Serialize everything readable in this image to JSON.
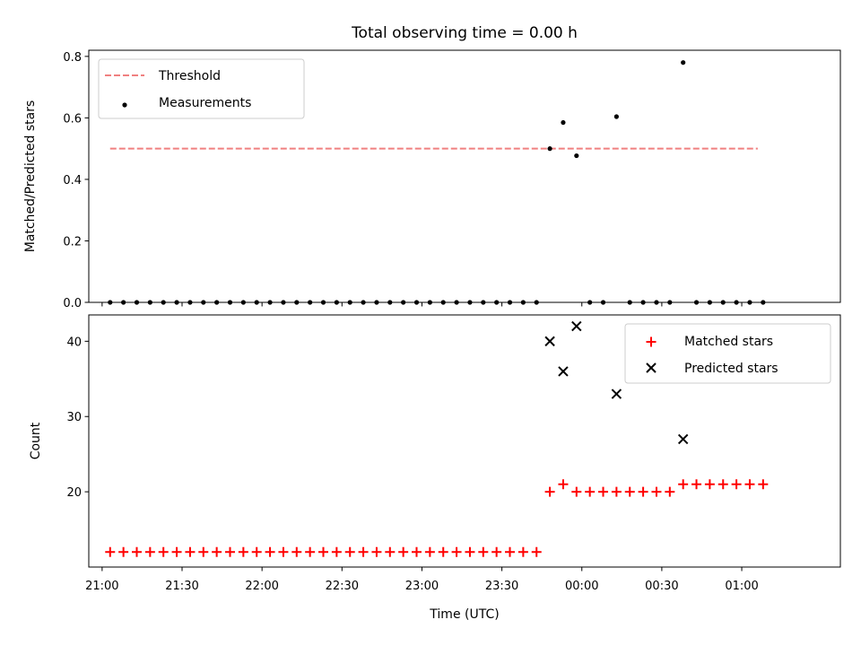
{
  "title": "Total observing time = 0.00 h",
  "colors": {
    "threshold": "#f08080",
    "measurement": "#000000",
    "matched": "#ff0000",
    "predicted": "#000000"
  },
  "chart_data": [
    {
      "type": "scatter",
      "title": "Total observing time = 0.00 h",
      "ylabel": "Matched/Predicted stars",
      "xlabel": "",
      "xlim": [
        "20:55",
        "01:37"
      ],
      "ylim": [
        0,
        0.82
      ],
      "xticks": [
        "21:00",
        "21:30",
        "22:00",
        "22:30",
        "23:00",
        "23:30",
        "00:00",
        "00:30",
        "01:00"
      ],
      "yticks": [
        "0.0",
        "0.2",
        "0.4",
        "0.6",
        "0.8"
      ],
      "legend": {
        "position": "upper left",
        "entries": [
          "Threshold",
          "Measurements"
        ]
      },
      "grid": false,
      "threshold": {
        "name": "Threshold",
        "value": 0.5,
        "x_start": "21:03",
        "x_end": "01:06"
      },
      "series": [
        {
          "name": "Measurements",
          "points": [
            [
              "21:03",
              0
            ],
            [
              "21:08",
              0
            ],
            [
              "21:13",
              0
            ],
            [
              "21:18",
              0
            ],
            [
              "21:23",
              0
            ],
            [
              "21:28",
              0
            ],
            [
              "21:33",
              0
            ],
            [
              "21:38",
              0
            ],
            [
              "21:43",
              0
            ],
            [
              "21:48",
              0
            ],
            [
              "21:53",
              0
            ],
            [
              "21:58",
              0
            ],
            [
              "22:03",
              0
            ],
            [
              "22:08",
              0
            ],
            [
              "22:13",
              0
            ],
            [
              "22:18",
              0
            ],
            [
              "22:23",
              0
            ],
            [
              "22:28",
              0
            ],
            [
              "22:33",
              0
            ],
            [
              "22:38",
              0
            ],
            [
              "22:43",
              0
            ],
            [
              "22:48",
              0
            ],
            [
              "22:53",
              0
            ],
            [
              "22:58",
              0
            ],
            [
              "23:03",
              0
            ],
            [
              "23:08",
              0
            ],
            [
              "23:13",
              0
            ],
            [
              "23:18",
              0
            ],
            [
              "23:23",
              0
            ],
            [
              "23:28",
              0
            ],
            [
              "23:33",
              0
            ],
            [
              "23:38",
              0
            ],
            [
              "23:43",
              0
            ],
            [
              "23:48",
              0.5
            ],
            [
              "23:53",
              0.585
            ],
            [
              "23:58",
              0.477
            ],
            [
              "00:03",
              0
            ],
            [
              "00:08",
              0
            ],
            [
              "00:13",
              0.604
            ],
            [
              "00:18",
              0
            ],
            [
              "00:23",
              0
            ],
            [
              "00:28",
              0
            ],
            [
              "00:33",
              0
            ],
            [
              "00:38",
              0.78
            ],
            [
              "00:43",
              0
            ],
            [
              "00:48",
              0
            ],
            [
              "00:53",
              0
            ],
            [
              "00:58",
              0
            ],
            [
              "01:03",
              0
            ],
            [
              "01:08",
              0
            ]
          ]
        }
      ]
    },
    {
      "type": "scatter",
      "title": "",
      "ylabel": "Count",
      "xlabel": "Time (UTC)",
      "xlim": [
        "20:55",
        "01:37"
      ],
      "ylim": [
        10,
        43.5
      ],
      "xticks": [
        "21:00",
        "21:30",
        "22:00",
        "22:30",
        "23:00",
        "23:30",
        "00:00",
        "00:30",
        "01:00"
      ],
      "yticks": [
        "20",
        "30",
        "40"
      ],
      "legend": {
        "position": "upper right",
        "entries": [
          "Matched stars",
          "Predicted stars"
        ]
      },
      "grid": false,
      "series": [
        {
          "name": "Matched stars",
          "marker": "plus",
          "points": [
            [
              "21:03",
              12
            ],
            [
              "21:08",
              12
            ],
            [
              "21:13",
              12
            ],
            [
              "21:18",
              12
            ],
            [
              "21:23",
              12
            ],
            [
              "21:28",
              12
            ],
            [
              "21:33",
              12
            ],
            [
              "21:38",
              12
            ],
            [
              "21:43",
              12
            ],
            [
              "21:48",
              12
            ],
            [
              "21:53",
              12
            ],
            [
              "21:58",
              12
            ],
            [
              "22:03",
              12
            ],
            [
              "22:08",
              12
            ],
            [
              "22:13",
              12
            ],
            [
              "22:18",
              12
            ],
            [
              "22:23",
              12
            ],
            [
              "22:28",
              12
            ],
            [
              "22:33",
              12
            ],
            [
              "22:38",
              12
            ],
            [
              "22:43",
              12
            ],
            [
              "22:48",
              12
            ],
            [
              "22:53",
              12
            ],
            [
              "22:58",
              12
            ],
            [
              "23:03",
              12
            ],
            [
              "23:08",
              12
            ],
            [
              "23:13",
              12
            ],
            [
              "23:18",
              12
            ],
            [
              "23:23",
              12
            ],
            [
              "23:28",
              12
            ],
            [
              "23:33",
              12
            ],
            [
              "23:38",
              12
            ],
            [
              "23:43",
              12
            ],
            [
              "23:48",
              20
            ],
            [
              "23:53",
              21
            ],
            [
              "23:58",
              20
            ],
            [
              "00:03",
              20
            ],
            [
              "00:08",
              20
            ],
            [
              "00:13",
              20
            ],
            [
              "00:18",
              20
            ],
            [
              "00:23",
              20
            ],
            [
              "00:28",
              20
            ],
            [
              "00:33",
              20
            ],
            [
              "00:38",
              21
            ],
            [
              "00:43",
              21
            ],
            [
              "00:48",
              21
            ],
            [
              "00:53",
              21
            ],
            [
              "00:58",
              21
            ],
            [
              "01:03",
              21
            ],
            [
              "01:08",
              21
            ]
          ]
        },
        {
          "name": "Predicted stars",
          "marker": "x",
          "points": [
            [
              "23:48",
              40
            ],
            [
              "23:53",
              36
            ],
            [
              "23:58",
              42
            ],
            [
              "00:13",
              33
            ],
            [
              "00:38",
              27
            ]
          ]
        }
      ]
    }
  ]
}
